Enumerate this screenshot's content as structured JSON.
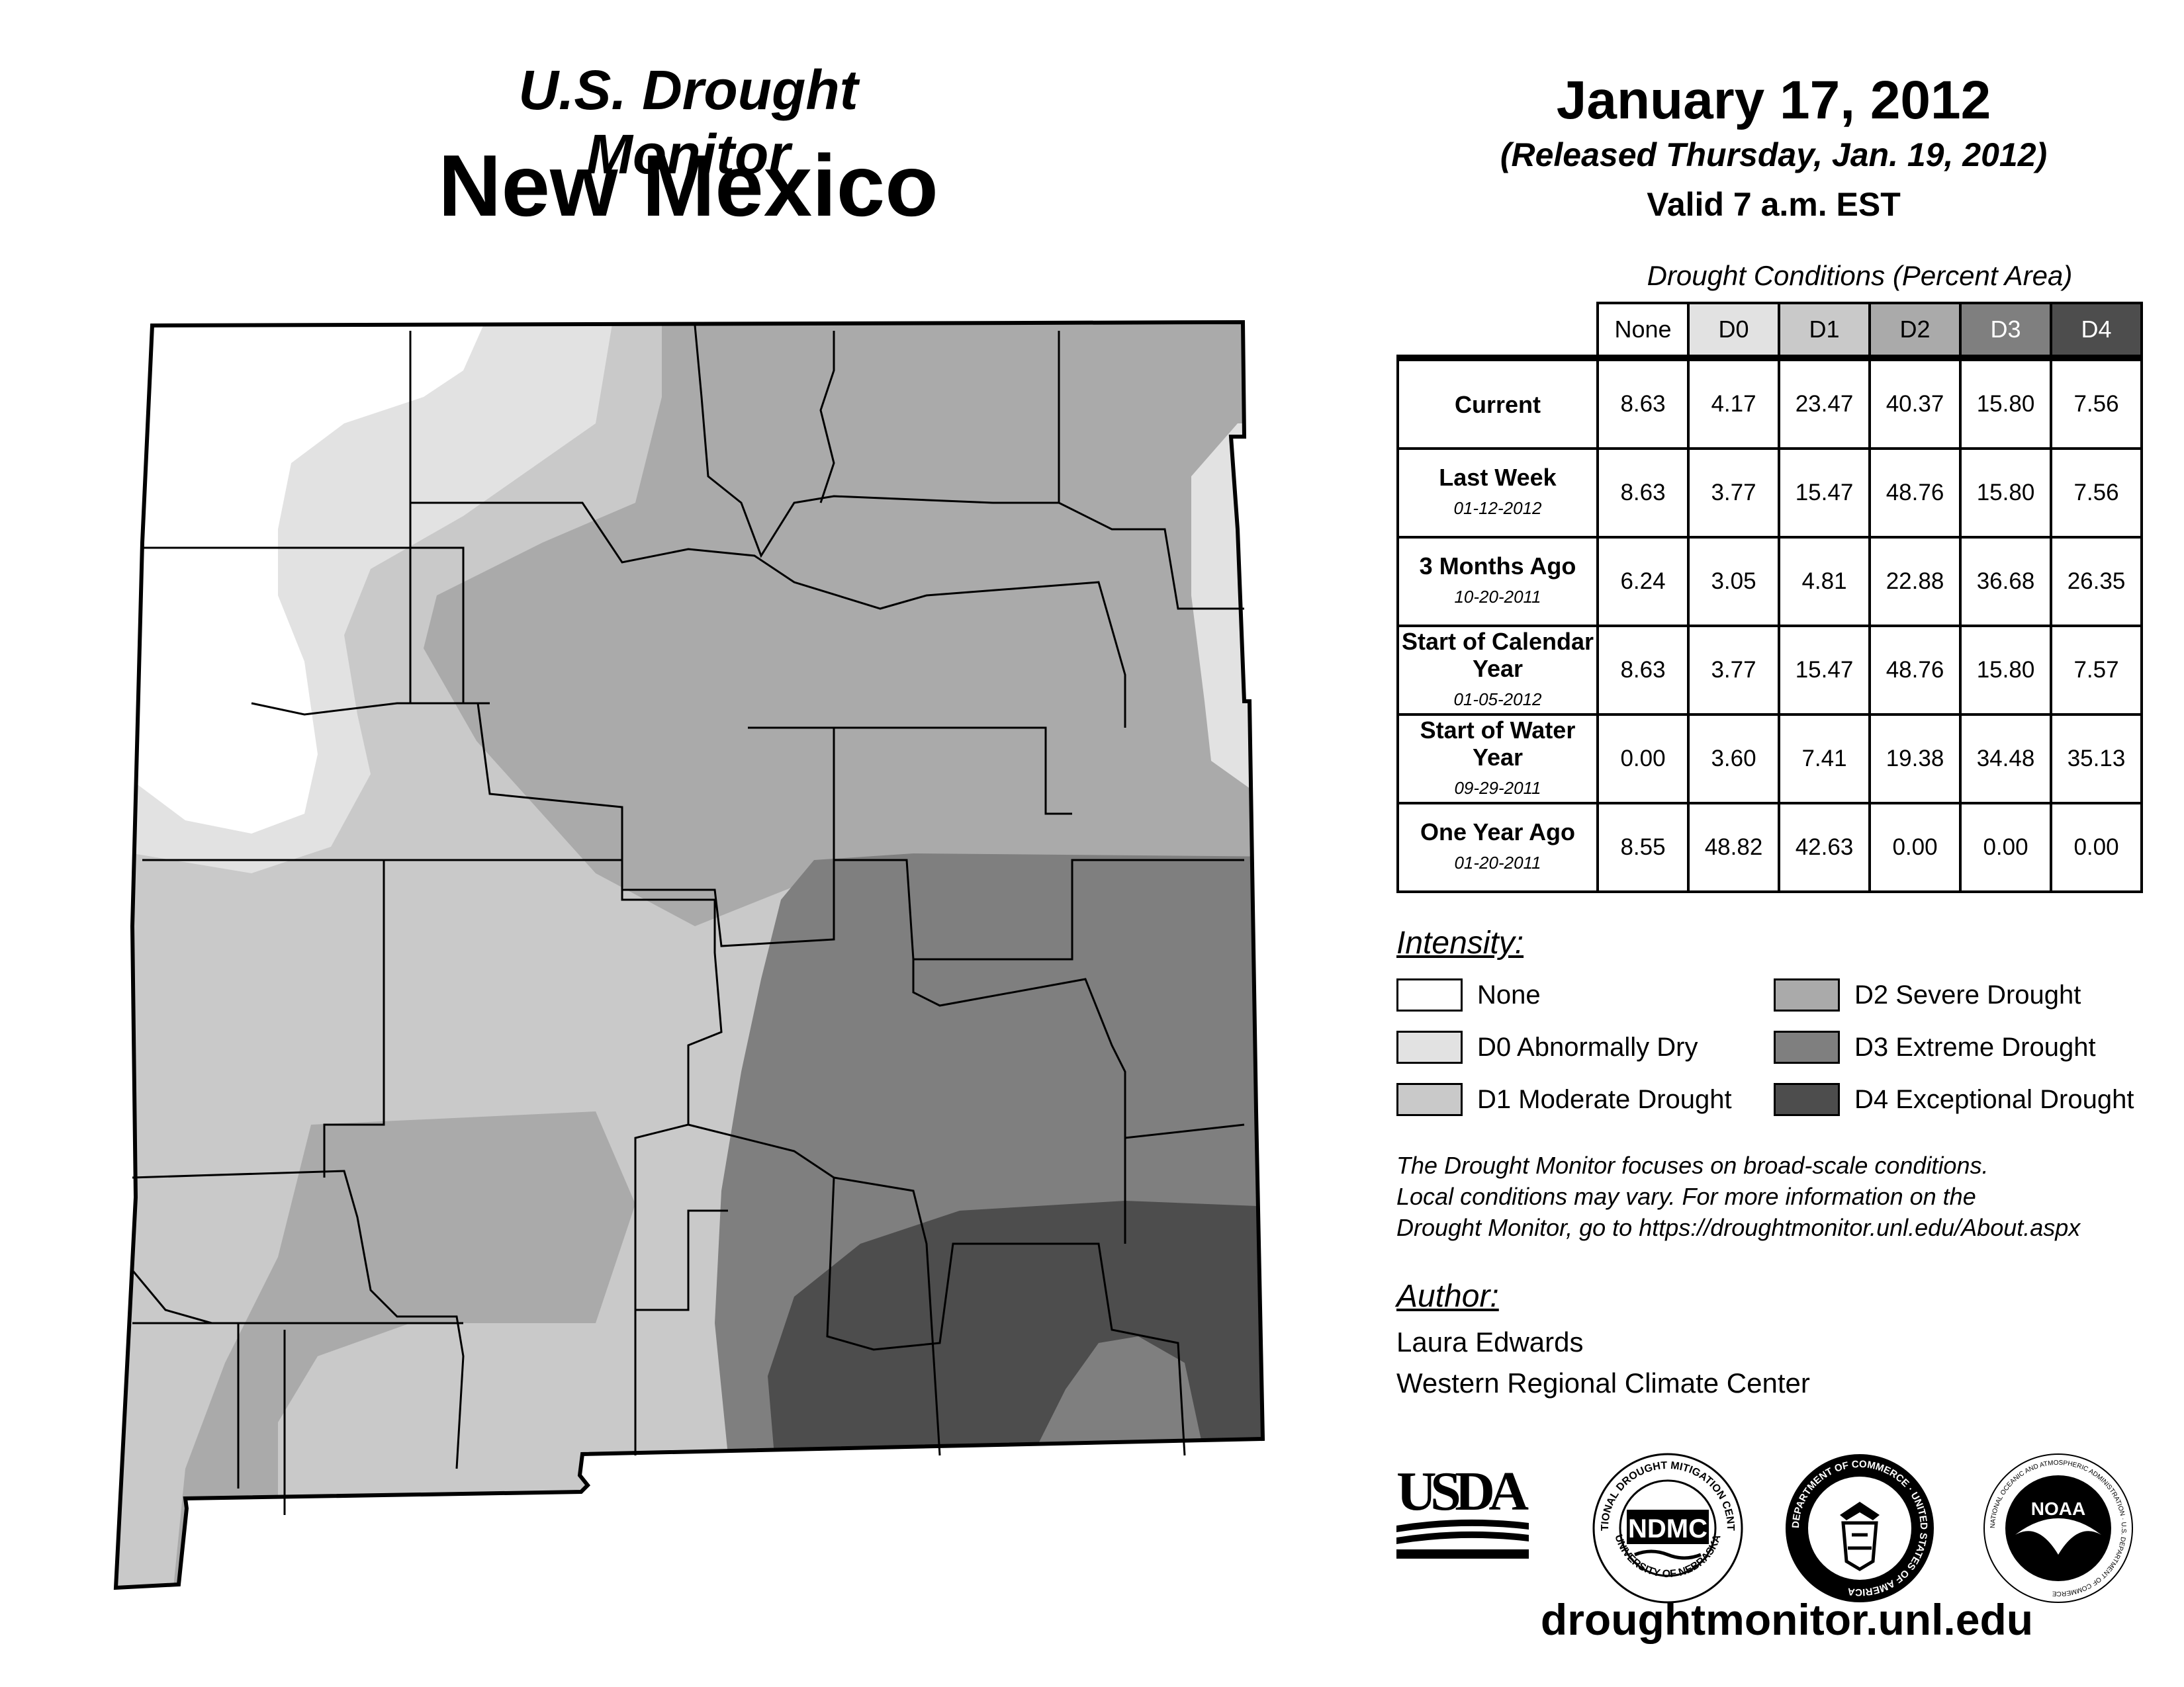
{
  "header": {
    "monitor_title": "U.S. Drought Monitor",
    "state": "New Mexico",
    "date": "January 17, 2012",
    "released": "(Released Thursday, Jan. 19, 2012)",
    "valid": "Valid 7 a.m. EST"
  },
  "table": {
    "caption": "Drought Conditions (Percent Area)",
    "columns": [
      "None",
      "D0",
      "D1",
      "D2",
      "D3",
      "D4"
    ],
    "rows": [
      {
        "label": "Current",
        "date": "",
        "values": [
          "8.63",
          "4.17",
          "23.47",
          "40.37",
          "15.80",
          "7.56"
        ]
      },
      {
        "label": "Last Week",
        "date": "01-12-2012",
        "values": [
          "8.63",
          "3.77",
          "15.47",
          "48.76",
          "15.80",
          "7.56"
        ]
      },
      {
        "label": "3 Months Ago",
        "date": "10-20-2011",
        "values": [
          "6.24",
          "3.05",
          "4.81",
          "22.88",
          "36.68",
          "26.35"
        ]
      },
      {
        "label": "Start of Calendar Year",
        "date": "01-05-2012",
        "values": [
          "8.63",
          "3.77",
          "15.47",
          "48.76",
          "15.80",
          "7.57"
        ]
      },
      {
        "label": "Start of Water Year",
        "date": "09-29-2011",
        "values": [
          "0.00",
          "3.60",
          "7.41",
          "19.38",
          "34.48",
          "35.13"
        ]
      },
      {
        "label": "One Year Ago",
        "date": "01-20-2011",
        "values": [
          "8.55",
          "48.82",
          "42.63",
          "0.00",
          "0.00",
          "0.00"
        ]
      }
    ]
  },
  "legend": {
    "title": "Intensity:",
    "items": [
      {
        "label": "None",
        "color": "#ffffff"
      },
      {
        "label": "D0 Abnormally Dry",
        "color": "#e2e2e2"
      },
      {
        "label": "D1 Moderate Drought",
        "color": "#c9c9c9"
      },
      {
        "label": "D2 Severe Drought",
        "color": "#aaaaaa"
      },
      {
        "label": "D3 Extreme Drought",
        "color": "#7f7f7f"
      },
      {
        "label": "D4 Exceptional Drought",
        "color": "#4d4d4d"
      }
    ]
  },
  "note": {
    "line1": "The Drought Monitor focuses on broad-scale conditions.",
    "line2": "Local conditions may vary. For more information on the",
    "line3": "Drought Monitor, go to https://droughtmonitor.unl.edu/About.aspx"
  },
  "author": {
    "title": "Author:",
    "name": "Laura Edwards",
    "org": "Western Regional Climate Center"
  },
  "logos": {
    "usda": "USDA",
    "ndmc": "NDMC",
    "ndmc_ring_top": "NATIONAL DROUGHT MITIGATION CENTER",
    "ndmc_ring_bottom": "UNIVERSITY OF NEBRASKA",
    "doc_ring": "DEPARTMENT OF COMMERCE · UNITED STATES OF AMERICA",
    "noaa": "NOAA",
    "noaa_ring": "NATIONAL OCEANIC AND ATMOSPHERIC ADMINISTRATION · U.S. DEPARTMENT OF COMMERCE"
  },
  "website": "droughtmonitor.unl.edu"
}
